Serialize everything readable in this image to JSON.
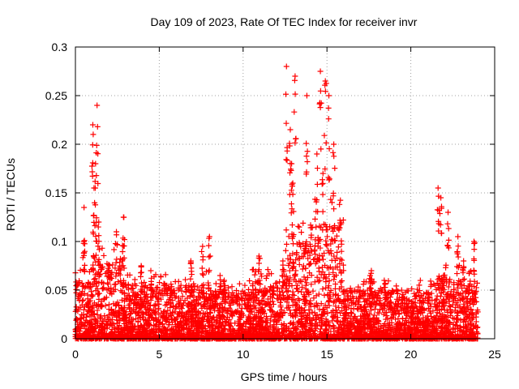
{
  "chart_data": {
    "type": "scatter",
    "title": "Day 109 of 2023, Rate Of TEC Index for receiver invr",
    "xlabel": "GPS time / hours",
    "ylabel": "ROTI / TECUs",
    "xlim": [
      0,
      25
    ],
    "ylim": [
      0,
      0.3
    ],
    "x_ticks": [
      0,
      5,
      10,
      15,
      20,
      25
    ],
    "y_ticks": [
      0,
      0.05,
      0.1,
      0.15,
      0.2,
      0.25,
      0.3
    ],
    "x_tick_labels": [
      "0",
      "5",
      "10",
      "15",
      "20",
      "25"
    ],
    "y_tick_labels": [
      "0",
      "0.05",
      "0.1",
      "0.15",
      "0.2",
      "0.25",
      "0.3"
    ],
    "grid": true,
    "marker": "+",
    "series": [
      {
        "name": "ROTI",
        "color": "#ff0000",
        "x_range": [
          0,
          24
        ],
        "note": "dense cloud of points; per-interval envelope of estimated values",
        "envelope": [
          {
            "x": [
              0,
              1
            ],
            "typical_max": 0.06,
            "peaks": [
              0.135,
              0.1
            ]
          },
          {
            "x": [
              1,
              1.3
            ],
            "typical_max": 0.09,
            "peaks": [
              0.24,
              0.22,
              0.18,
              0.155
            ]
          },
          {
            "x": [
              1.3,
              3
            ],
            "typical_max": 0.08,
            "peaks": [
              0.125,
              0.12,
              0.11
            ]
          },
          {
            "x": [
              3,
              7.5
            ],
            "typical_max": 0.055,
            "peaks": [
              0.08,
              0.075,
              0.07
            ]
          },
          {
            "x": [
              7.5,
              8
            ],
            "typical_max": 0.06,
            "peaks": [
              0.105,
              0.095
            ]
          },
          {
            "x": [
              8,
              10.5
            ],
            "typical_max": 0.05,
            "peaks": [
              0.065,
              0.06
            ]
          },
          {
            "x": [
              10.5,
              12.5
            ],
            "typical_max": 0.06,
            "peaks": [
              0.085,
              0.08
            ]
          },
          {
            "x": [
              12.5,
              14
            ],
            "typical_max": 0.1,
            "peaks": [
              0.28,
              0.27,
              0.25,
              0.215,
              0.18,
              0.16
            ]
          },
          {
            "x": [
              14,
              16
            ],
            "typical_max": 0.12,
            "peaks": [
              0.275,
              0.265,
              0.25,
              0.2,
              0.19,
              0.17
            ]
          },
          {
            "x": [
              16,
              21.5
            ],
            "typical_max": 0.05,
            "peaks": [
              0.07,
              0.065,
              0.06
            ]
          },
          {
            "x": [
              21.5,
              23
            ],
            "typical_max": 0.065,
            "peaks": [
              0.155,
              0.145,
              0.13,
              0.105
            ]
          },
          {
            "x": [
              23,
              24
            ],
            "typical_max": 0.06,
            "peaks": [
              0.1,
              0.08
            ]
          }
        ]
      }
    ]
  }
}
